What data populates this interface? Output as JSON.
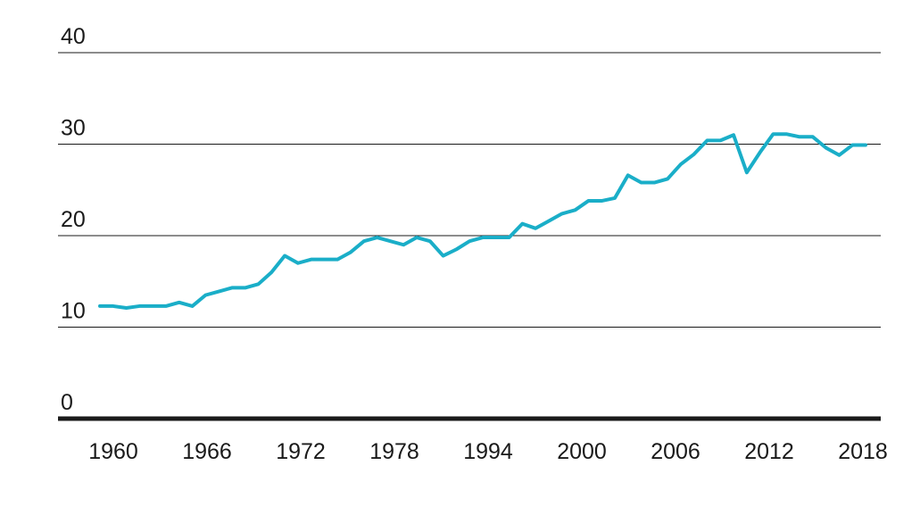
{
  "colors": {
    "line": "#1aaec8",
    "grid": "#1a1a1a",
    "text": "#1a1a1a",
    "background": "#ffffff"
  },
  "chart_data": {
    "type": "line",
    "title": "",
    "xlabel": "",
    "ylabel": "",
    "ylim": [
      0,
      40
    ],
    "yticks": [
      "0",
      "10",
      "20",
      "30",
      "40"
    ],
    "xtick_labels": [
      "1960",
      "1966",
      "1972",
      "1978",
      "1994",
      "2000",
      "2006",
      "2012",
      "2018"
    ],
    "grid": "horizontal",
    "legend": "none",
    "series": [
      {
        "values": [
          12.3,
          12.3,
          12.1,
          12.3,
          12.3,
          12.3,
          12.7,
          12.3,
          13.5,
          13.9,
          14.3,
          14.3,
          14.7,
          16.0,
          17.8,
          17.0,
          17.4,
          17.4,
          17.4,
          18.2,
          19.4,
          19.8,
          19.4,
          19.0,
          19.8,
          19.4,
          17.8,
          18.5,
          19.4,
          19.8,
          19.8,
          19.8,
          21.3,
          20.8,
          21.6,
          22.4,
          22.8,
          23.8,
          23.8,
          24.1,
          26.6,
          25.8,
          25.8,
          26.2,
          27.8,
          28.9,
          30.4,
          30.4,
          31.0,
          26.9,
          29.1,
          31.1,
          31.1,
          30.8,
          30.8,
          29.6,
          28.8,
          29.9,
          29.9
        ]
      }
    ]
  }
}
